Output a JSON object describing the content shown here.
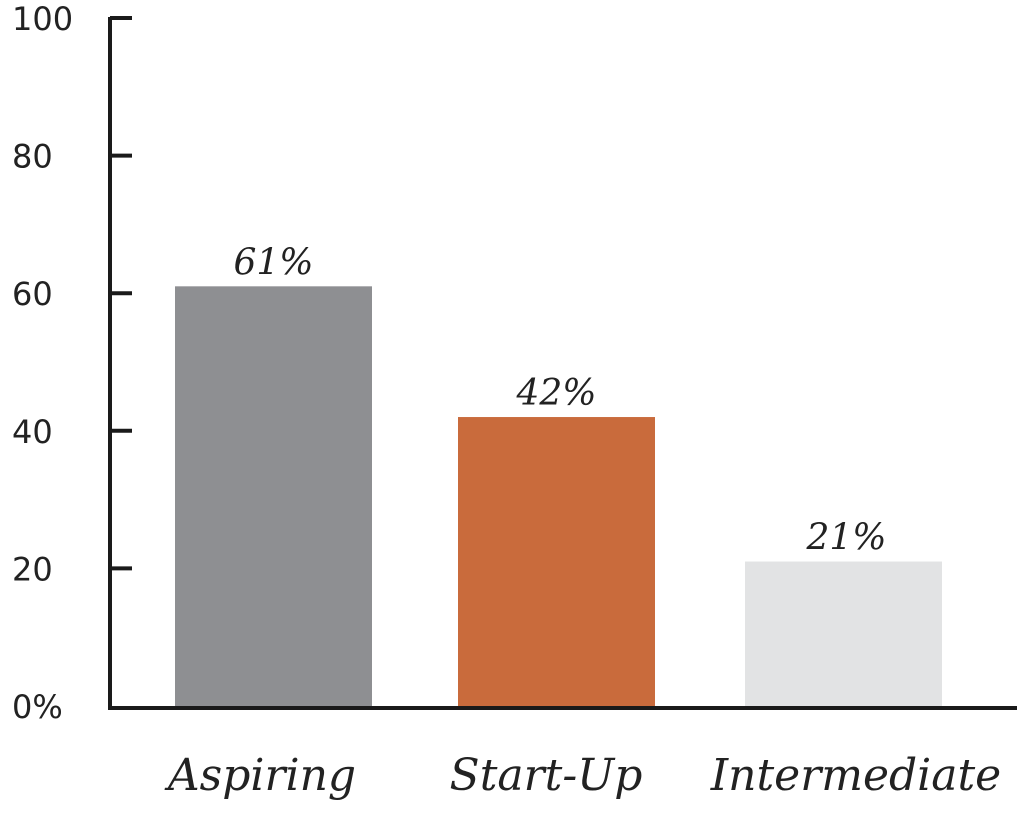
{
  "chart_data": {
    "type": "bar",
    "title": "",
    "xlabel": "",
    "ylabel": "",
    "categories": [
      "Aspiring",
      "Start-Up",
      "Intermediate"
    ],
    "values": [
      61,
      42,
      21
    ],
    "data_labels": [
      "61%",
      "42%",
      "21%"
    ],
    "bar_colors": [
      "#8e8f92",
      "#c96b3c",
      "#e2e3e4"
    ],
    "ylim": [
      0,
      100
    ],
    "yticks": [
      0,
      20,
      40,
      60,
      80,
      100
    ],
    "ytick_labels": [
      "0%",
      "20",
      "40",
      "60",
      "80",
      "100"
    ],
    "grid": false,
    "legend": "none"
  }
}
